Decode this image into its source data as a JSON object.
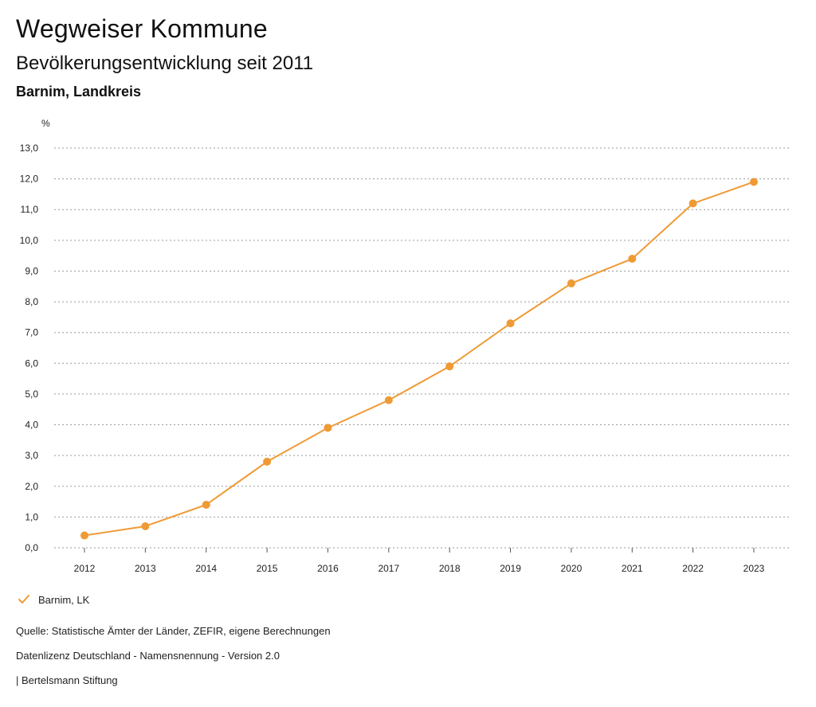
{
  "header": {
    "title": "Wegweiser Kommune",
    "subtitle": "Bevölkerungsentwicklung seit 2011",
    "region": "Barnim, Landkreis"
  },
  "chart_data": {
    "type": "line",
    "title": "Bevölkerungsentwicklung seit 2011",
    "xlabel": "",
    "ylabel": "%",
    "ylim": [
      0,
      13
    ],
    "yticks": [
      "0,0",
      "1,0",
      "2,0",
      "3,0",
      "4,0",
      "5,0",
      "6,0",
      "7,0",
      "8,0",
      "9,0",
      "10,0",
      "11,0",
      "12,0",
      "13,0"
    ],
    "categories": [
      "2012",
      "2013",
      "2014",
      "2015",
      "2016",
      "2017",
      "2018",
      "2019",
      "2020",
      "2021",
      "2022",
      "2023"
    ],
    "grid": true,
    "legend_position": "bottom-left",
    "series": [
      {
        "name": "Barnim, LK",
        "color": "#ef9a35",
        "values": [
          0.4,
          0.7,
          1.4,
          2.8,
          3.9,
          4.8,
          5.9,
          7.3,
          8.6,
          9.4,
          11.2,
          11.9
        ]
      }
    ]
  },
  "legend": {
    "label": "Barnim, LK",
    "icon": "check-icon",
    "color": "#ef9a35"
  },
  "footer": {
    "source": "Quelle: Statistische Ämter der Länder, ZEFIR, eigene Berechnungen",
    "license": "Datenlizenz Deutschland - Namensnennung - Version 2.0",
    "publisher": "| Bertelsmann Stiftung"
  }
}
